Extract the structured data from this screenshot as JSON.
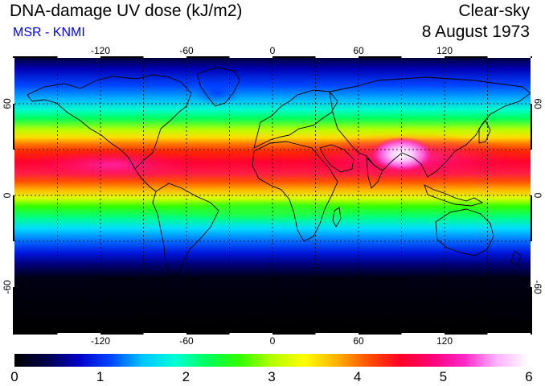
{
  "header": {
    "title": "DNA-damage UV dose (kJ/m2)",
    "source": "MSR - KNMI",
    "condition": "Clear-sky",
    "date": "8 August 1973"
  },
  "colors": {
    "source_text": "#0000ff",
    "scale": [
      "#000000",
      "#00004a",
      "#0000c8",
      "#0046ff",
      "#00c8ff",
      "#00ffd2",
      "#00ff5a",
      "#32ff00",
      "#b4ff00",
      "#ffff00",
      "#ffb400",
      "#ff5000",
      "#ff0028",
      "#ff0078",
      "#ff28c8",
      "#ffb4ff",
      "#ffffff"
    ]
  },
  "map": {
    "projection": "equirectangular",
    "lon_range": [
      -180,
      180
    ],
    "lat_range": [
      -90,
      90
    ],
    "grid_spacing_deg": 30,
    "lon_tick_labels": [
      "-120",
      "-60",
      "0",
      "60",
      "120"
    ],
    "lat_tick_labels_left": [
      "60",
      "0",
      "-60"
    ],
    "lat_tick_labels_right": [
      "60",
      "0",
      "-60"
    ]
  },
  "colorbar": {
    "min": 0,
    "max": 6,
    "labels": [
      "0",
      "1",
      "2",
      "3",
      "4",
      "5",
      "6"
    ]
  }
}
